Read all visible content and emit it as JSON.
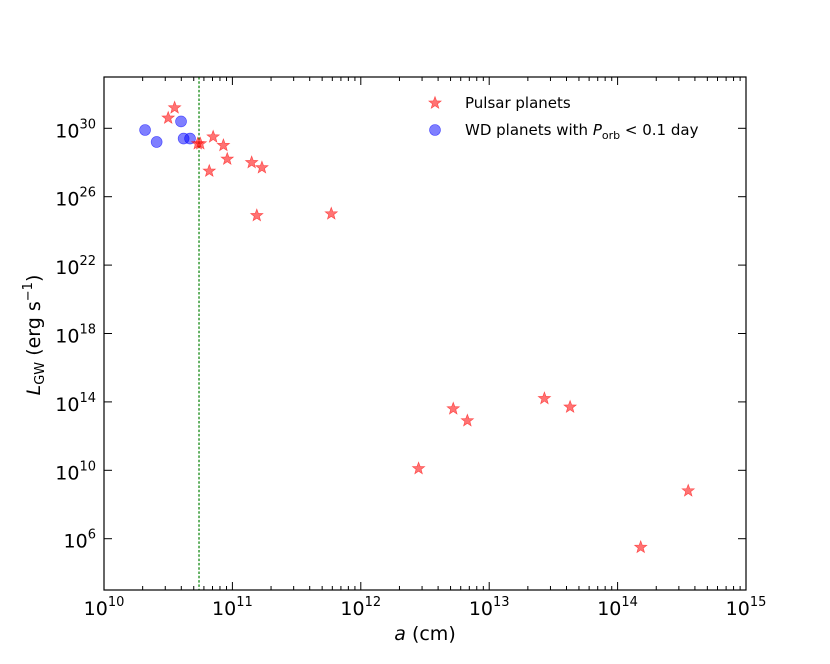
{
  "chart_data": {
    "type": "scatter",
    "title": "",
    "xlabel": {
      "var": "a",
      "unit": " (cm)"
    },
    "ylabel": {
      "var": "L",
      "sub": "GW",
      "unit": " (erg s",
      "unit_sup": "−1",
      "unit_close": ")"
    },
    "x_scale": "log",
    "y_scale": "log",
    "xlim_exp": [
      10,
      15
    ],
    "ylim_exp": [
      3,
      33
    ],
    "x_ticks": [
      {
        "base": "10",
        "exp": "10"
      },
      {
        "base": "10",
        "exp": "11"
      },
      {
        "base": "10",
        "exp": "12"
      },
      {
        "base": "10",
        "exp": "13"
      },
      {
        "base": "10",
        "exp": "14"
      },
      {
        "base": "10",
        "exp": "15"
      }
    ],
    "y_ticks": [
      {
        "base": "10",
        "exp": "6"
      },
      {
        "base": "10",
        "exp": "10"
      },
      {
        "base": "10",
        "exp": "14"
      },
      {
        "base": "10",
        "exp": "18"
      },
      {
        "base": "10",
        "exp": "22"
      },
      {
        "base": "10",
        "exp": "26"
      },
      {
        "base": "10",
        "exp": "30"
      }
    ],
    "vline_log_x": 10.74,
    "vline_color": "#008000",
    "legend_position": "top-right",
    "series": [
      {
        "name": "Pulsar planets",
        "marker": "star",
        "color": "#ff0000",
        "points_log": [
          [
            10.5,
            30.6
          ],
          [
            10.55,
            31.2
          ],
          [
            10.73,
            29.1
          ],
          [
            10.75,
            29.1
          ],
          [
            10.85,
            29.5
          ],
          [
            10.93,
            29.0
          ],
          [
            10.96,
            28.2
          ],
          [
            10.82,
            27.5
          ],
          [
            11.15,
            28.0
          ],
          [
            11.23,
            27.7
          ],
          [
            11.19,
            24.9
          ],
          [
            11.77,
            25.0
          ],
          [
            12.45,
            10.1
          ],
          [
            12.72,
            13.6
          ],
          [
            12.83,
            12.9
          ],
          [
            13.43,
            14.2
          ],
          [
            13.63,
            13.7
          ],
          [
            14.18,
            5.5
          ],
          [
            14.55,
            8.8
          ]
        ]
      },
      {
        "name": "WD planets with ",
        "name_var": "P",
        "name_sub": "orb",
        "name_rest": " < 0.1 day",
        "marker": "circle",
        "color": "#0000ff",
        "points_log": [
          [
            10.32,
            29.9
          ],
          [
            10.41,
            29.2
          ],
          [
            10.6,
            30.4
          ],
          [
            10.62,
            29.4
          ],
          [
            10.67,
            29.4
          ]
        ]
      }
    ]
  }
}
